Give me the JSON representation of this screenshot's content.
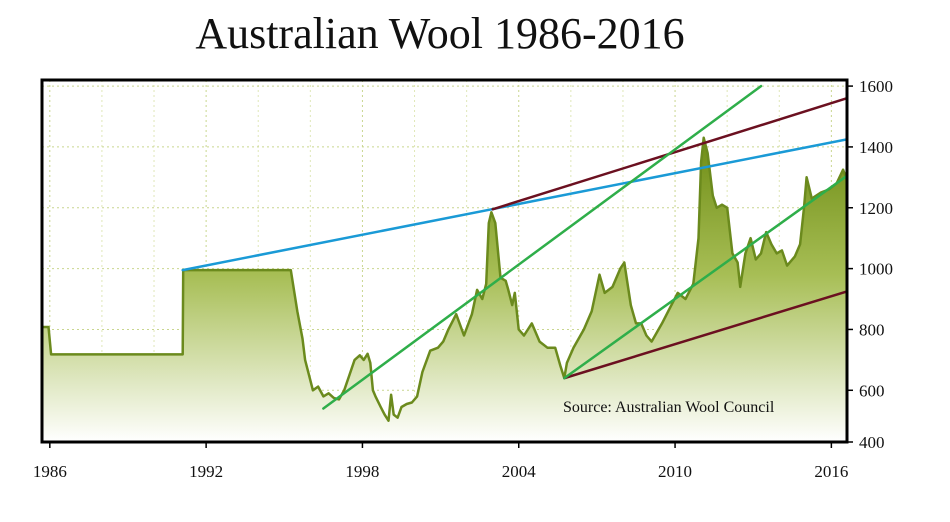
{
  "chart_data": {
    "type": "area",
    "title": "Australian Wool 1986-2016",
    "xlabel": "",
    "ylabel": "",
    "xlim": [
      1985.7,
      2016.6
    ],
    "ylim": [
      430,
      1620
    ],
    "x_ticks": [
      1986,
      1992,
      1998,
      2004,
      2010,
      2016
    ],
    "x_tick_labels": [
      "1986",
      "1992",
      "1998",
      "2004",
      "2010",
      "2016"
    ],
    "y_ticks": [
      400,
      600,
      800,
      1000,
      1200,
      1400,
      1600
    ],
    "y_tick_labels": [
      "400",
      "600",
      "800",
      "1000",
      "1200",
      "1400",
      "1600"
    ],
    "y_axis_side": "right",
    "grid": true,
    "annotation": "Source: Australian Wool Council",
    "series": [
      {
        "values": [
          [
            1985.7,
            808
          ],
          [
            1985.95,
            808
          ],
          [
            1986.05,
            718
          ],
          [
            1989.5,
            718
          ],
          [
            1991.1,
            718
          ],
          [
            1991.12,
            995
          ],
          [
            1995.25,
            995
          ],
          [
            1995.5,
            860
          ],
          [
            1995.7,
            770
          ],
          [
            1995.8,
            700
          ],
          [
            1995.95,
            650
          ],
          [
            1996.1,
            600
          ],
          [
            1996.3,
            612
          ],
          [
            1996.5,
            580
          ],
          [
            1996.7,
            590
          ],
          [
            1996.9,
            575
          ],
          [
            1997.1,
            570
          ],
          [
            1997.3,
            600
          ],
          [
            1997.5,
            650
          ],
          [
            1997.7,
            700
          ],
          [
            1997.9,
            715
          ],
          [
            1998.05,
            700
          ],
          [
            1998.2,
            720
          ],
          [
            1998.3,
            690
          ],
          [
            1998.4,
            600
          ],
          [
            1998.5,
            580
          ],
          [
            1998.7,
            545
          ],
          [
            1998.85,
            520
          ],
          [
            1999.0,
            500
          ],
          [
            1999.1,
            585
          ],
          [
            1999.2,
            520
          ],
          [
            1999.35,
            510
          ],
          [
            1999.5,
            545
          ],
          [
            1999.7,
            555
          ],
          [
            1999.9,
            560
          ],
          [
            2000.1,
            580
          ],
          [
            2000.3,
            660
          ],
          [
            2000.6,
            730
          ],
          [
            2000.9,
            740
          ],
          [
            2001.1,
            760
          ],
          [
            2001.3,
            800
          ],
          [
            2001.6,
            850
          ],
          [
            2001.9,
            780
          ],
          [
            2002.2,
            850
          ],
          [
            2002.4,
            930
          ],
          [
            2002.6,
            900
          ],
          [
            2002.75,
            950
          ],
          [
            2002.85,
            1150
          ],
          [
            2002.95,
            1185
          ],
          [
            2003.1,
            1150
          ],
          [
            2003.3,
            970
          ],
          [
            2003.5,
            960
          ],
          [
            2003.6,
            930
          ],
          [
            2003.75,
            880
          ],
          [
            2003.85,
            920
          ],
          [
            2004.0,
            800
          ],
          [
            2004.2,
            780
          ],
          [
            2004.5,
            820
          ],
          [
            2004.8,
            760
          ],
          [
            2005.1,
            740
          ],
          [
            2005.4,
            740
          ],
          [
            2005.6,
            680
          ],
          [
            2005.75,
            640
          ],
          [
            2005.85,
            690
          ],
          [
            2006.1,
            740
          ],
          [
            2006.5,
            800
          ],
          [
            2006.8,
            860
          ],
          [
            2007.1,
            980
          ],
          [
            2007.3,
            920
          ],
          [
            2007.6,
            940
          ],
          [
            2007.9,
            1000
          ],
          [
            2008.05,
            1020
          ],
          [
            2008.3,
            880
          ],
          [
            2008.5,
            820
          ],
          [
            2008.7,
            820
          ],
          [
            2008.9,
            780
          ],
          [
            2009.1,
            760
          ],
          [
            2009.3,
            790
          ],
          [
            2009.5,
            820
          ],
          [
            2009.8,
            870
          ],
          [
            2010.1,
            920
          ],
          [
            2010.4,
            900
          ],
          [
            2010.7,
            950
          ],
          [
            2010.9,
            1100
          ],
          [
            2011.0,
            1350
          ],
          [
            2011.1,
            1430
          ],
          [
            2011.25,
            1380
          ],
          [
            2011.45,
            1240
          ],
          [
            2011.6,
            1200
          ],
          [
            2011.8,
            1210
          ],
          [
            2012.0,
            1200
          ],
          [
            2012.2,
            1050
          ],
          [
            2012.4,
            1020
          ],
          [
            2012.5,
            940
          ],
          [
            2012.7,
            1050
          ],
          [
            2012.9,
            1100
          ],
          [
            2013.1,
            1030
          ],
          [
            2013.3,
            1050
          ],
          [
            2013.5,
            1120
          ],
          [
            2013.7,
            1080
          ],
          [
            2013.9,
            1050
          ],
          [
            2014.1,
            1060
          ],
          [
            2014.3,
            1010
          ],
          [
            2014.6,
            1040
          ],
          [
            2014.8,
            1080
          ],
          [
            2014.95,
            1200
          ],
          [
            2015.05,
            1300
          ],
          [
            2015.25,
            1230
          ],
          [
            2015.6,
            1250
          ],
          [
            2015.9,
            1260
          ],
          [
            2016.2,
            1280
          ],
          [
            2016.45,
            1325
          ],
          [
            2016.6,
            1290
          ]
        ]
      }
    ],
    "trend_lines": [
      {
        "color": "#1a9ad6",
        "points": [
          [
            1991.1,
            995
          ],
          [
            2016.6,
            1425
          ]
        ]
      },
      {
        "color": "#6b1020",
        "points": [
          [
            2003.0,
            1195
          ],
          [
            2016.6,
            1560
          ]
        ]
      },
      {
        "color": "#6b1020",
        "points": [
          [
            2005.75,
            640
          ],
          [
            2016.6,
            925
          ]
        ]
      },
      {
        "color": "#2fae4a",
        "points": [
          [
            1996.5,
            540
          ],
          [
            2013.3,
            1600
          ]
        ]
      },
      {
        "color": "#2fae4a",
        "points": [
          [
            2005.75,
            640
          ],
          [
            2016.6,
            1305
          ]
        ]
      }
    ]
  }
}
